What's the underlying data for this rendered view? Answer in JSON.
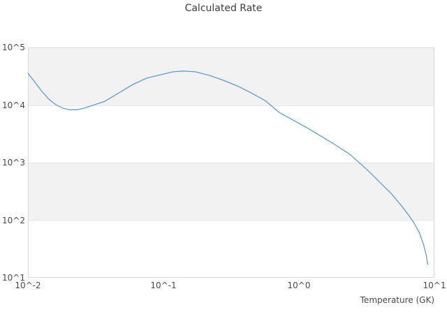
{
  "chart_data": {
    "type": "line",
    "title": "Calculated Rate",
    "xlabel": "Temperature (GK)",
    "ylabel": "",
    "xscale": "log",
    "yscale": "log",
    "xlim": [
      0.01,
      10
    ],
    "ylim": [
      10,
      100000
    ],
    "x_ticks": [
      0.01,
      0.1,
      1,
      10
    ],
    "x_tick_labels": [
      "10^-2",
      "10^-1",
      "10^0",
      "10^1"
    ],
    "y_ticks": [
      10,
      100,
      1000,
      10000,
      100000
    ],
    "y_tick_labels": [
      "10^1",
      "10^2",
      "10^3",
      "10^4",
      "10^5"
    ],
    "grid": "alternating-horizontal-decade-bands",
    "legend": "none",
    "colors": {
      "band": "#f2f2f2",
      "gridline": "#e8e8e8",
      "plot_border": "#d9d9d9",
      "title_text": "#3d3d3d",
      "tick_text": "#4a4a4a"
    },
    "series": [
      {
        "name": "Calculated Rate",
        "color": "#5f9dd8",
        "x": [
          0.01,
          0.0113,
          0.0127,
          0.0143,
          0.0161,
          0.0181,
          0.0204,
          0.0229,
          0.0258,
          0.0309,
          0.0369,
          0.0468,
          0.0594,
          0.0754,
          0.0956,
          0.118,
          0.141,
          0.172,
          0.218,
          0.277,
          0.351,
          0.445,
          0.565,
          0.716,
          0.908,
          1.15,
          1.46,
          1.85,
          2.35,
          2.87,
          3.35,
          4.01,
          4.81,
          5.76,
          6.48,
          7.04,
          7.76,
          8.33,
          8.72,
          8.91
        ],
        "y": [
          35600,
          24700,
          17200,
          12600,
          10100,
          8800,
          8300,
          8300,
          8800,
          10100,
          11600,
          16200,
          22700,
          29400,
          33700,
          37800,
          38900,
          37800,
          32700,
          26900,
          21500,
          16200,
          11900,
          7400,
          5450,
          4000,
          2860,
          2040,
          1420,
          940,
          670,
          440,
          289,
          174,
          121,
          91,
          60,
          37,
          24,
          17
        ]
      }
    ]
  }
}
